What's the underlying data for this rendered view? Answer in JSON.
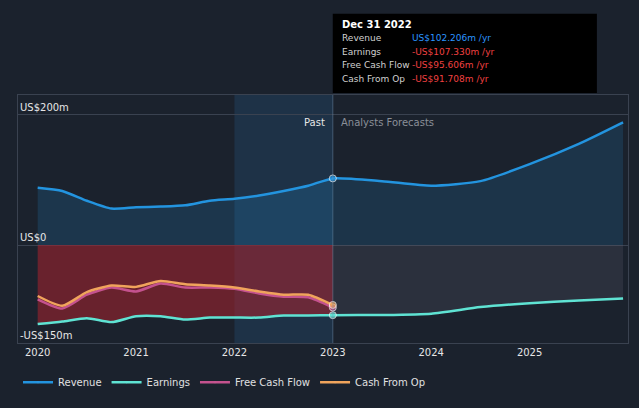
{
  "chart_data": {
    "type": "line",
    "x": [
      2020,
      2020.25,
      2020.5,
      2020.75,
      2021,
      2021.25,
      2021.5,
      2021.75,
      2022,
      2022.25,
      2022.5,
      2022.75,
      2023,
      2023.5,
      2024,
      2024.5,
      2025,
      2025.5,
      2025.95
    ],
    "xlim": [
      2019.8,
      2026
    ],
    "xticks": [
      2020,
      2021,
      2022,
      2023,
      2024,
      2025
    ],
    "ylim": [
      -150,
      230
    ],
    "yticks": [
      {
        "value": 200,
        "label": "US$200m"
      },
      {
        "value": 0,
        "label": "US$0"
      },
      {
        "value": -150,
        "label": "-US$150m"
      }
    ],
    "grid": true,
    "legend": "bottom-left",
    "series": [
      {
        "name": "Revenue",
        "color": "#2394df",
        "type": "area",
        "values": [
          88,
          83,
          68,
          56,
          58,
          59,
          61,
          68,
          71,
          76,
          83,
          91,
          102.206,
          98,
          91,
          98,
          124,
          155,
          188
        ]
      },
      {
        "name": "Earnings",
        "color": "#5fe3d3",
        "type": "area",
        "values": [
          -121,
          -117,
          -112,
          -118,
          -109,
          -109,
          -114,
          -111,
          -111,
          -111,
          -108,
          -108,
          -107.33,
          -107,
          -105,
          -95,
          -89,
          -85,
          -82
        ]
      },
      {
        "name": "Free Cash Flow",
        "color": "#c4528e",
        "type": "line",
        "values": [
          -83,
          -97,
          -76,
          -65,
          -71,
          -59,
          -65,
          -65,
          -67,
          -74,
          -79,
          -80,
          -95.606,
          null,
          null,
          null,
          null,
          null,
          null
        ]
      },
      {
        "name": "Cash From Op",
        "color": "#f0a45c",
        "type": "line",
        "values": [
          -78,
          -93,
          -72,
          -62,
          -64,
          -55,
          -60,
          -62,
          -65,
          -71,
          -76,
          -76,
          -91.708,
          null,
          null,
          null,
          null,
          null,
          null
        ]
      }
    ],
    "annotations": [
      {
        "text": "Past",
        "x": 2023,
        "side": "left"
      },
      {
        "text": "Analysts Forecasts",
        "x": 2023,
        "side": "right"
      }
    ],
    "tooltip": {
      "title": "Dec 31 2022",
      "rows": [
        {
          "label": "Revenue",
          "value": "US$102.206m",
          "unit": "/yr"
        },
        {
          "label": "Earnings",
          "value": "-US$107.330m",
          "unit": "/yr"
        },
        {
          "label": "Free Cash Flow",
          "value": "-US$95.606m",
          "unit": "/yr"
        },
        {
          "label": "Cash From Op",
          "value": "-US$91.708m",
          "unit": "/yr"
        }
      ]
    }
  }
}
